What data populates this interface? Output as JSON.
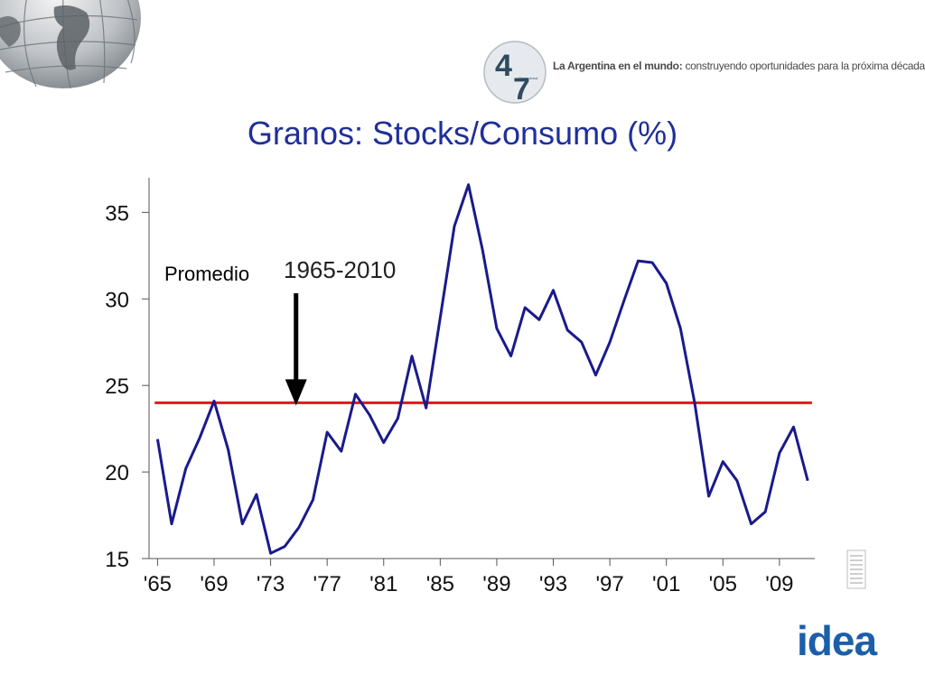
{
  "slide": {
    "title": "Granos: Stocks/Consumo (%)",
    "tagline_bold": "La Argentina en el mundo:",
    "tagline_rest": " construyendo oportunidades para la próxima década",
    "logo_number_a": "4",
    "logo_number_b": "7",
    "logo_small_text": "Grupo Arnal",
    "footer_logo": "idea"
  },
  "chart_data": {
    "type": "line",
    "title": "Granos: Stocks/Consumo (%)",
    "xlabel": "",
    "ylabel": "",
    "x": [
      1965,
      1966,
      1967,
      1968,
      1969,
      1970,
      1971,
      1972,
      1973,
      1974,
      1975,
      1976,
      1977,
      1978,
      1979,
      1980,
      1981,
      1982,
      1983,
      1984,
      1985,
      1986,
      1987,
      1988,
      1989,
      1990,
      1991,
      1992,
      1993,
      1994,
      1995,
      1996,
      1997,
      1998,
      1999,
      2000,
      2001,
      2002,
      2003,
      2004,
      2005,
      2006,
      2007,
      2008,
      2009,
      2010,
      2011
    ],
    "x_tick_values": [
      1965,
      1969,
      1973,
      1977,
      1981,
      1985,
      1989,
      1993,
      1997,
      2001,
      2005,
      2009
    ],
    "x_tick_labels": [
      "'65",
      "'69",
      "'73",
      "'77",
      "'81",
      "'85",
      "'89",
      "'93",
      "'97",
      "'01",
      "'05",
      "'09"
    ],
    "xlim": [
      1964.4,
      2011.5
    ],
    "ylim": [
      15,
      37
    ],
    "y_ticks": [
      15,
      20,
      25,
      30,
      35
    ],
    "grid": false,
    "series": [
      {
        "color": "#1a1a8c",
        "values": [
          21.9,
          17.0,
          20.2,
          22.0,
          24.1,
          21.3,
          17.0,
          18.7,
          15.3,
          15.7,
          16.8,
          18.4,
          22.3,
          21.2,
          24.5,
          23.3,
          21.7,
          23.1,
          26.7,
          23.7,
          28.9,
          34.2,
          36.6,
          32.8,
          28.3,
          26.7,
          29.5,
          28.8,
          30.5,
          28.2,
          27.5,
          25.6,
          27.5,
          29.9,
          32.2,
          32.1,
          30.9,
          28.3,
          24.0,
          18.6,
          20.6,
          19.5,
          17.0,
          17.7,
          21.1,
          22.6,
          19.5
        ]
      }
    ],
    "reference_line": {
      "value": 24,
      "color": "#e11a1a"
    },
    "annotation": {
      "label": "Promedio",
      "range_label": "1965-2010",
      "arrow_x": 1974.8
    }
  }
}
